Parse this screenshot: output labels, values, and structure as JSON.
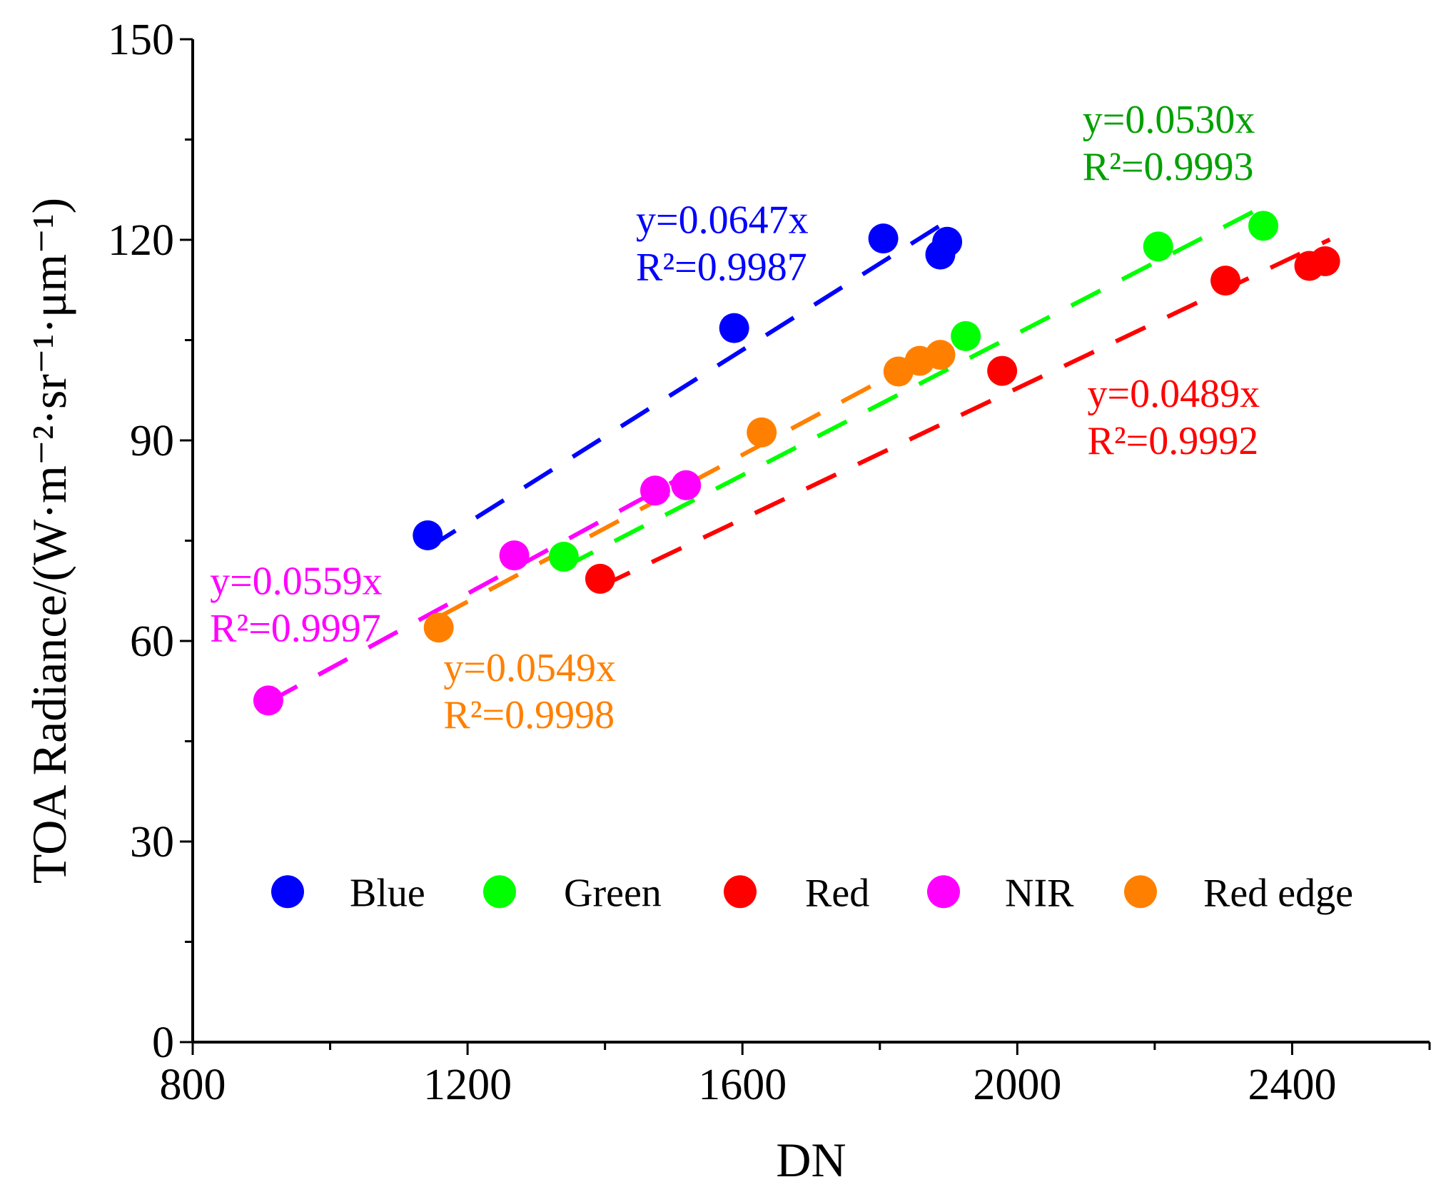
{
  "chart_data": {
    "type": "scatter",
    "xlabel": "DN",
    "ylabel": "TOA Radiance/(W·m⁻²·sr⁻¹·μm⁻¹)",
    "xlim": [
      800,
      2600
    ],
    "ylim": [
      0,
      150
    ],
    "xticks": [
      800,
      1200,
      1600,
      2000,
      2400
    ],
    "yticks": [
      0,
      30,
      60,
      90,
      120,
      150
    ],
    "x_tick_labels": [
      "800",
      "1200",
      "1600",
      "2000",
      "2400"
    ],
    "y_tick_labels": [
      "0",
      "30",
      "60",
      "90",
      "120",
      "150"
    ],
    "grid": false,
    "legend_position": "bottom-center",
    "series": [
      {
        "name": "Blue",
        "color": "#0000ff",
        "points": [
          [
            1142,
            75.8
          ],
          [
            1588,
            106.8
          ],
          [
            1805,
            120.2
          ],
          [
            1888,
            117.8
          ],
          [
            1898,
            119.7
          ]
        ],
        "fit": {
          "slope": 0.0647,
          "x_range": [
            1142,
            1898
          ]
        },
        "annotation": {
          "equation": "y=0.0647x",
          "r2": "R²=0.9987",
          "anchor_x": 1445,
          "anchor_y": 121
        }
      },
      {
        "name": "Green",
        "color": "#00ff00",
        "label_color": "#00a000",
        "points": [
          [
            1340,
            72.6
          ],
          [
            1925,
            105.6
          ],
          [
            2205,
            119.0
          ],
          [
            2358,
            122.1
          ]
        ],
        "fit": {
          "slope": 0.053,
          "x_range": [
            1340,
            2365
          ]
        },
        "annotation": {
          "equation": "y=0.0530x",
          "r2": "R²=0.9993",
          "anchor_x": 2095,
          "anchor_y": 136
        }
      },
      {
        "name": "Red",
        "color": "#ff0000",
        "points": [
          [
            1393,
            69.3
          ],
          [
            1978,
            100.4
          ],
          [
            2303,
            113.9
          ],
          [
            2425,
            116.1
          ],
          [
            2448,
            116.8
          ]
        ],
        "fit": {
          "slope": 0.0489,
          "x_range": [
            1393,
            2455
          ]
        },
        "annotation": {
          "equation": "y=0.0489x",
          "r2": "R²=0.9992",
          "anchor_x": 2102,
          "anchor_y": 95
        }
      },
      {
        "name": "NIR",
        "color": "#ff00ff",
        "points": [
          [
            910,
            51.1
          ],
          [
            1268,
            72.8
          ],
          [
            1473,
            82.5
          ],
          [
            1518,
            83.3
          ]
        ],
        "fit": {
          "slope": 0.0559,
          "x_range": [
            910,
            1518
          ]
        },
        "annotation": {
          "equation": "y=0.0559x",
          "r2": "R²=0.9997",
          "anchor_x": 825,
          "anchor_y": 67
        }
      },
      {
        "name": "Red edge",
        "color": "#ff8000",
        "points": [
          [
            1158,
            62.0
          ],
          [
            1628,
            91.2
          ],
          [
            1827,
            100.3
          ],
          [
            1858,
            101.9
          ],
          [
            1888,
            102.8
          ]
        ],
        "fit": {
          "slope": 0.0549,
          "x_range": [
            1158,
            1888
          ]
        },
        "annotation": {
          "equation": "y=0.0549x",
          "r2": "R²=0.9998",
          "anchor_x": 1165,
          "anchor_y": 54
        }
      }
    ]
  }
}
